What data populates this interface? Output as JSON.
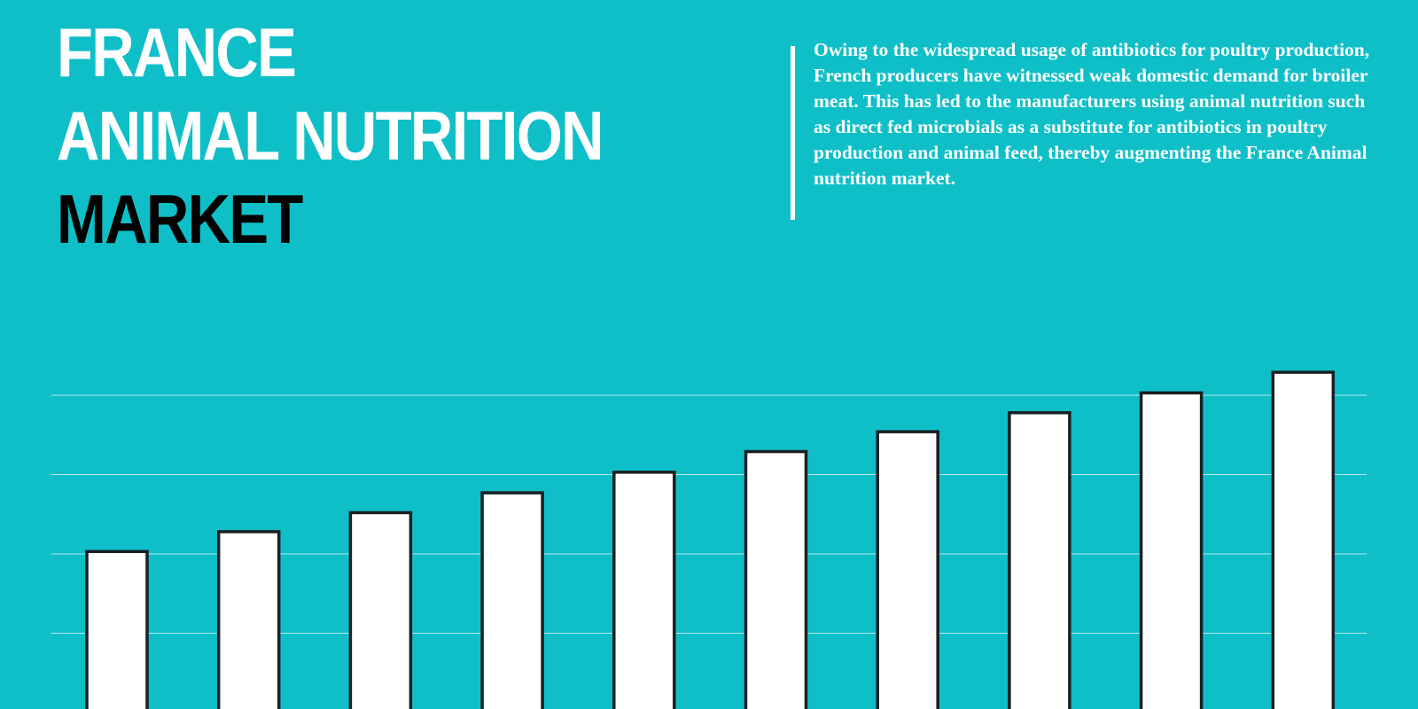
{
  "colors": {
    "background": "#0fbfc8",
    "title_light": "#ffffff",
    "title_dark": "#000000",
    "text": "#ffffff",
    "bar_fill": "#ffffff",
    "bar_stroke": "#1a1f24",
    "gridline": "#b9e9ec",
    "quote_bar": "#ffffff"
  },
  "title": {
    "line1": "FRANCE",
    "line2": "ANIMAL NUTRITION",
    "line3": "MARKET"
  },
  "description": "Owing to the widespread usage of antibiotics for poultry production, French producers have witnessed weak domestic demand for broiler meat. This has led to the manufacturers using animal nutrition such as direct fed microbials as a substitute for antibiotics in poultry production and animal feed, thereby augmenting the France Animal nutrition market.",
  "chart_data": {
    "type": "bar",
    "categories": [
      "",
      "",
      "",
      "",
      "",
      "",
      "",
      "",
      "",
      ""
    ],
    "values": [
      20.3,
      22.8,
      25.2,
      27.7,
      30.3,
      32.9,
      35.4,
      37.8,
      40.3,
      42.9
    ],
    "ylim": [
      0,
      40
    ],
    "grid": true,
    "gridlines": [
      10,
      20,
      30
    ],
    "title": "",
    "xlabel": "",
    "ylabel": ""
  }
}
